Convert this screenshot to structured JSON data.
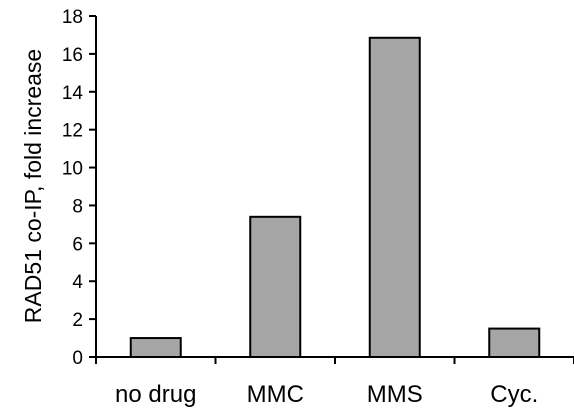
{
  "chart_data": {
    "type": "bar",
    "title": "",
    "xlabel": "",
    "ylabel": "RAD51 co-IP, fold increase",
    "categories": [
      "no drug",
      "MMC",
      "MMS",
      "Cyc."
    ],
    "values": [
      1.0,
      7.4,
      16.85,
      1.5
    ],
    "ylim": [
      0,
      18
    ],
    "yticks": [
      0,
      2,
      4,
      6,
      8,
      10,
      12,
      14,
      16,
      18
    ],
    "grid": false,
    "legend": "none",
    "bar_color": "#a6a6a6",
    "bar_edge_color": "#000000"
  }
}
